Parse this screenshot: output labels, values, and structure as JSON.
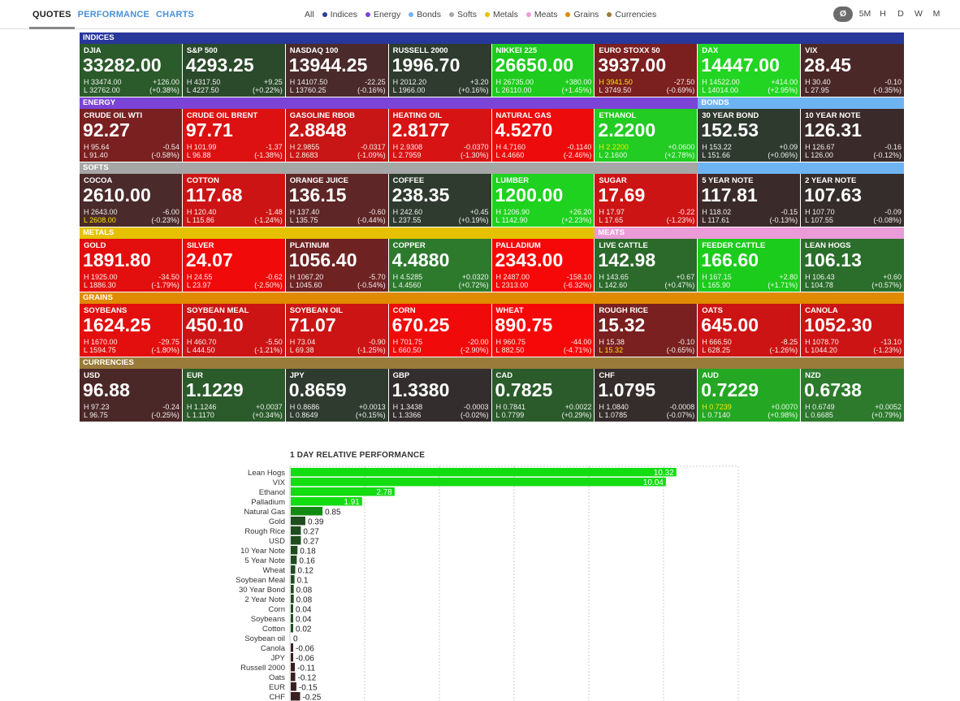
{
  "nav": {
    "tabs": [
      {
        "label": "QUOTES",
        "active": true
      },
      {
        "label": "PERFORMANCE",
        "active": false
      },
      {
        "label": "CHARTS",
        "active": false
      }
    ],
    "filters": [
      {
        "label": "All",
        "color": ""
      },
      {
        "label": "Indices",
        "color": "#2a3d9a"
      },
      {
        "label": "Energy",
        "color": "#7b44d6"
      },
      {
        "label": "Bonds",
        "color": "#6fb4f2"
      },
      {
        "label": "Softs",
        "color": "#a6a6a6"
      },
      {
        "label": "Metals",
        "color": "#e5c100"
      },
      {
        "label": "Meats",
        "color": "#eb9bd8"
      },
      {
        "label": "Grains",
        "color": "#e08a00"
      },
      {
        "label": "Currencies",
        "color": "#9a7b3a"
      }
    ],
    "periods": [
      {
        "label": "Ø",
        "active": true
      },
      {
        "label": "5M",
        "active": false
      },
      {
        "label": "H",
        "active": false
      },
      {
        "label": "D",
        "active": false
      },
      {
        "label": "W",
        "active": false
      },
      {
        "label": "M",
        "active": false
      }
    ]
  },
  "rows": [
    {
      "headers": [
        {
          "label": "INDICES",
          "span": 8,
          "color": "#28379a"
        }
      ],
      "tiles": [
        {
          "name": "DJIA",
          "price": "33282.00",
          "high": "H 33474.00",
          "low": "L 32762.00",
          "change": "+126.00",
          "pct": "(+0.38%)",
          "color": "#2b5a2b"
        },
        {
          "name": "S&P 500",
          "price": "4293.25",
          "high": "H 4317.50",
          "low": "L 4227.50",
          "change": "+9.25",
          "pct": "(+0.22%)",
          "color": "#2b4a2b"
        },
        {
          "name": "NASDAQ 100",
          "price": "13944.25",
          "high": "H 14107.50",
          "low": "L 13760.25",
          "change": "-22.25",
          "pct": "(-0.16%)",
          "color": "#4a2a2a"
        },
        {
          "name": "RUSSELL 2000",
          "price": "1996.70",
          "high": "H 2012.20",
          "low": "L 1966.00",
          "change": "+3.20",
          "pct": "(+0.16%)",
          "color": "#2e3b2e"
        },
        {
          "name": "NIKKEI 225",
          "price": "26650.00",
          "high": "H 26735.00",
          "low": "L 26110.00",
          "change": "+380.00",
          "pct": "(+1.45%)",
          "color": "#1ecb1e"
        },
        {
          "name": "EURO STOXX 50",
          "price": "3937.00",
          "high": "H 3941.50",
          "low": "L 3749.50",
          "change": "-27.50",
          "pct": "(-0.69%)",
          "color": "#7c1f1f",
          "high_hl": true
        },
        {
          "name": "DAX",
          "price": "14447.00",
          "high": "H 14522.00",
          "low": "L 14014.00",
          "change": "+414.00",
          "pct": "(+2.95%)",
          "color": "#22d522"
        },
        {
          "name": "VIX",
          "price": "28.45",
          "high": "H 30.40",
          "low": "L 27.95",
          "change": "-0.10",
          "pct": "(-0.35%)",
          "color": "#4b2828"
        }
      ]
    },
    {
      "headers": [
        {
          "label": "ENERGY",
          "span": 6,
          "color": "#7b44d6"
        },
        {
          "label": "BONDS",
          "span": 2,
          "color": "#6fb4f2"
        }
      ],
      "tiles": [
        {
          "name": "CRUDE OIL WTI",
          "price": "92.27",
          "high": "H 95.64",
          "low": "L 91.40",
          "change": "-0.54",
          "pct": "(-0.58%)",
          "color": "#7a2020"
        },
        {
          "name": "CRUDE OIL BRENT",
          "price": "97.71",
          "high": "H 101.99",
          "low": "L 96.88",
          "change": "-1.37",
          "pct": "(-1.38%)",
          "color": "#dd1111"
        },
        {
          "name": "GASOLINE RBOB",
          "price": "2.8848",
          "high": "H 2.9855",
          "low": "L 2.8683",
          "change": "-0.0317",
          "pct": "(-1.09%)",
          "color": "#c81515"
        },
        {
          "name": "HEATING OIL",
          "price": "2.8177",
          "high": "H 2.9308",
          "low": "L 2.7959",
          "change": "-0.0370",
          "pct": "(-1.30%)",
          "color": "#d81313"
        },
        {
          "name": "NATURAL GAS",
          "price": "4.5270",
          "high": "H 4.7160",
          "low": "L 4.4660",
          "change": "-0.1140",
          "pct": "(-2.46%)",
          "color": "#ee0b0b"
        },
        {
          "name": "ETHANOL",
          "price": "2.2200",
          "high": "H 2.2200",
          "low": "L 2.1600",
          "change": "+0.0600",
          "pct": "(+2.78%)",
          "color": "#22cc22",
          "high_hl": true
        },
        {
          "name": "30 YEAR BOND",
          "price": "152.53",
          "high": "H 153.22",
          "low": "L 151.66",
          "change": "+0.09",
          "pct": "(+0.06%)",
          "color": "#2e3a2e"
        },
        {
          "name": "10 YEAR NOTE",
          "price": "126.31",
          "high": "H 126.67",
          "low": "L 126.00",
          "change": "-0.16",
          "pct": "(-0.12%)",
          "color": "#3a2a2a"
        }
      ]
    },
    {
      "headers": [
        {
          "label": "SOFTS",
          "span": 6,
          "color": "#a6a6a6"
        },
        {
          "label": "",
          "span": 2,
          "color": "#6fb4f2"
        }
      ],
      "tiles": [
        {
          "name": "COCOA",
          "price": "2610.00",
          "high": "H 2643.00",
          "low": "L 2608.00",
          "change": "-6.00",
          "pct": "(-0.23%)",
          "color": "#4a2a2a",
          "low_hl": true
        },
        {
          "name": "COTTON",
          "price": "117.68",
          "high": "H 120.40",
          "low": "L 115.86",
          "change": "-1.48",
          "pct": "(-1.24%)",
          "color": "#cc1414"
        },
        {
          "name": "ORANGE JUICE",
          "price": "136.15",
          "high": "H 137.40",
          "low": "L 135.75",
          "change": "-0.60",
          "pct": "(-0.44%)",
          "color": "#5e2626"
        },
        {
          "name": "COFFEE",
          "price": "238.35",
          "high": "H 242.60",
          "low": "L 237.55",
          "change": "+0.45",
          "pct": "(+0.19%)",
          "color": "#2e3b2e"
        },
        {
          "name": "LUMBER",
          "price": "1200.00",
          "high": "H 1206.90",
          "low": "L 1142.90",
          "change": "+26.20",
          "pct": "(+2.23%)",
          "color": "#1fd21f"
        },
        {
          "name": "SUGAR",
          "price": "17.69",
          "high": "H 17.97",
          "low": "L 17.65",
          "change": "-0.22",
          "pct": "(-1.23%)",
          "color": "#cc1414"
        },
        {
          "name": "5 YEAR NOTE",
          "price": "117.81",
          "high": "H 118.02",
          "low": "L 117.61",
          "change": "-0.15",
          "pct": "(-0.13%)",
          "color": "#3a2a2a"
        },
        {
          "name": "2 YEAR NOTE",
          "price": "107.63",
          "high": "H 107.70",
          "low": "L 107.55",
          "change": "-0.09",
          "pct": "(-0.08%)",
          "color": "#352c2c"
        }
      ]
    },
    {
      "headers": [
        {
          "label": "METALS",
          "span": 5,
          "color": "#e5c100"
        },
        {
          "label": "MEATS",
          "span": 3,
          "color": "#eb9bd8"
        }
      ],
      "tiles": [
        {
          "name": "GOLD",
          "price": "1891.80",
          "high": "H 1925.00",
          "low": "L 1886.30",
          "change": "-34.50",
          "pct": "(-1.79%)",
          "color": "#e30e0e"
        },
        {
          "name": "SILVER",
          "price": "24.07",
          "high": "H 24.55",
          "low": "L 23.97",
          "change": "-0.62",
          "pct": "(-2.50%)",
          "color": "#f00a0a"
        },
        {
          "name": "PLATINUM",
          "price": "1056.40",
          "high": "H 1067.20",
          "low": "L 1045.60",
          "change": "-5.70",
          "pct": "(-0.54%)",
          "color": "#6e2222"
        },
        {
          "name": "COPPER",
          "price": "4.4880",
          "high": "H 4.5285",
          "low": "L 4.4560",
          "change": "+0.0320",
          "pct": "(+0.72%)",
          "color": "#2d7a2d"
        },
        {
          "name": "PALLADIUM",
          "price": "2343.00",
          "high": "H 2487.00",
          "low": "L 2313.00",
          "change": "-158.10",
          "pct": "(-6.32%)",
          "color": "#f70808"
        },
        {
          "name": "LIVE CATTLE",
          "price": "142.98",
          "high": "H 143.65",
          "low": "L 142.60",
          "change": "+0.67",
          "pct": "(+0.47%)",
          "color": "#2b6a2b"
        },
        {
          "name": "FEEDER CATTLE",
          "price": "166.60",
          "high": "H 167.15",
          "low": "L 165.90",
          "change": "+2.80",
          "pct": "(+1.71%)",
          "color": "#1ccc1c"
        },
        {
          "name": "LEAN HOGS",
          "price": "106.13",
          "high": "H 106.43",
          "low": "L 104.78",
          "change": "+0.60",
          "pct": "(+0.57%)",
          "color": "#2b6e2b"
        }
      ]
    },
    {
      "headers": [
        {
          "label": "GRAINS",
          "span": 8,
          "color": "#e08a00"
        }
      ],
      "tiles": [
        {
          "name": "SOYBEANS",
          "price": "1624.25",
          "high": "H 1670.00",
          "low": "L 1594.75",
          "change": "-29.75",
          "pct": "(-1.80%)",
          "color": "#e30e0e"
        },
        {
          "name": "SOYBEAN MEAL",
          "price": "450.10",
          "high": "H 460.70",
          "low": "L 444.50",
          "change": "-5.50",
          "pct": "(-1.21%)",
          "color": "#cc1414"
        },
        {
          "name": "SOYBEAN OIL",
          "price": "71.07",
          "high": "H 73.04",
          "low": "L 69.38",
          "change": "-0.90",
          "pct": "(-1.25%)",
          "color": "#cc1414"
        },
        {
          "name": "CORN",
          "price": "670.25",
          "high": "H 701.75",
          "low": "L 660.50",
          "change": "-20.00",
          "pct": "(-2.90%)",
          "color": "#f00a0a"
        },
        {
          "name": "WHEAT",
          "price": "890.75",
          "high": "H 960.75",
          "low": "L 882.50",
          "change": "-44.00",
          "pct": "(-4.71%)",
          "color": "#f70808"
        },
        {
          "name": "ROUGH RICE",
          "price": "15.32",
          "high": "H 15.38",
          "low": "L 15.32",
          "change": "-0.10",
          "pct": "(-0.65%)",
          "color": "#7a2020",
          "low_hl": true
        },
        {
          "name": "OATS",
          "price": "645.00",
          "high": "H 666.50",
          "low": "L 628.25",
          "change": "-8.25",
          "pct": "(-1.26%)",
          "color": "#cc1414"
        },
        {
          "name": "CANOLA",
          "price": "1052.30",
          "high": "H 1078.70",
          "low": "L 1044.20",
          "change": "-13.10",
          "pct": "(-1.23%)",
          "color": "#cc1414"
        }
      ]
    },
    {
      "headers": [
        {
          "label": "CURRENCIES",
          "span": 8,
          "color": "#9a7b3a"
        }
      ],
      "tiles": [
        {
          "name": "USD",
          "price": "96.88",
          "high": "H 97.23",
          "low": "L 96.75",
          "change": "-0.24",
          "pct": "(-0.25%)",
          "color": "#4b2828"
        },
        {
          "name": "EUR",
          "price": "1.1229",
          "high": "H 1.1246",
          "low": "L 1.1170",
          "change": "+0.0037",
          "pct": "(+0.34%)",
          "color": "#2b5a2b"
        },
        {
          "name": "JPY",
          "price": "0.8659",
          "high": "H 0.8686",
          "low": "L 0.8649",
          "change": "+0.0013",
          "pct": "(+0.15%)",
          "color": "#2e3b2e"
        },
        {
          "name": "GBP",
          "price": "1.3380",
          "high": "H 1.3438",
          "low": "L 1.3366",
          "change": "-0.0003",
          "pct": "(-0.02%)",
          "color": "#332d2d"
        },
        {
          "name": "CAD",
          "price": "0.7825",
          "high": "H 0.7841",
          "low": "L 0.7799",
          "change": "+0.0022",
          "pct": "(+0.29%)",
          "color": "#2b5a2b"
        },
        {
          "name": "CHF",
          "price": "1.0795",
          "high": "H 1.0840",
          "low": "L 1.0785",
          "change": "-0.0008",
          "pct": "(-0.07%)",
          "color": "#352c2c"
        },
        {
          "name": "AUD",
          "price": "0.7229",
          "high": "H 0.7239",
          "low": "L 0.7140",
          "change": "+0.0070",
          "pct": "(+0.98%)",
          "color": "#24a824",
          "high_hl": true
        },
        {
          "name": "NZD",
          "price": "0.6738",
          "high": "H 0.6749",
          "low": "L 0.6685",
          "change": "+0.0052",
          "pct": "(+0.79%)",
          "color": "#2d7a2d"
        }
      ]
    }
  ],
  "performance": {
    "title": "1 DAY RELATIVE PERFORMANCE"
  },
  "chart_data": {
    "type": "bar",
    "orientation": "horizontal",
    "title": "1 DAY RELATIVE PERFORMANCE",
    "categories": [
      "Lean Hogs",
      "VIX",
      "Ethanol",
      "Palladium",
      "Natural Gas",
      "Gold",
      "Rough Rice",
      "USD",
      "10 Year Note",
      "5 Year Note",
      "Wheat",
      "Soybean Meal",
      "30 Year Bond",
      "2 Year Note",
      "Corn",
      "Soybeans",
      "Cotton",
      "Soybean oil",
      "Canola",
      "JPY",
      "Russell 2000",
      "Oats",
      "EUR",
      "CHF"
    ],
    "values": [
      10.32,
      10.04,
      2.78,
      1.91,
      0.85,
      0.39,
      0.27,
      0.27,
      0.18,
      0.16,
      0.12,
      0.1,
      0.08,
      0.08,
      0.04,
      0.04,
      0.02,
      0,
      -0.06,
      -0.06,
      -0.11,
      -0.12,
      -0.15,
      -0.25
    ],
    "xlim": [
      0,
      12
    ],
    "grid": true,
    "colors": {
      "strong_positive": "#11dd11",
      "positive": "#1f4d1f",
      "negative": "#3a2020"
    }
  }
}
